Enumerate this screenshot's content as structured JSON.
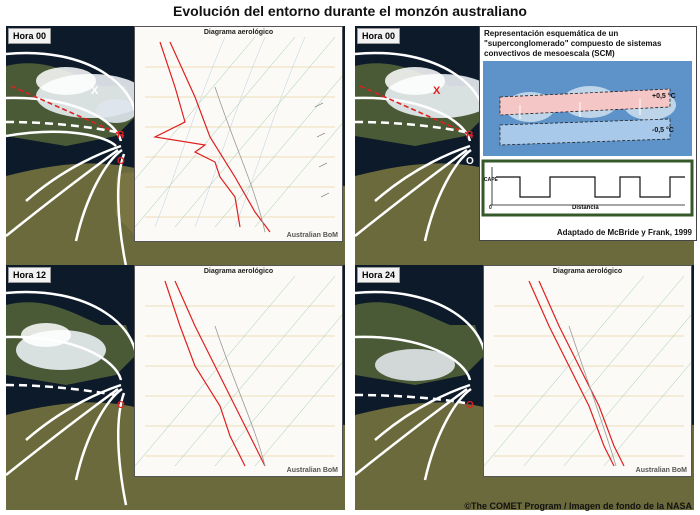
{
  "title": "Evolución del entorno durante el monzón australiano",
  "panels": [
    {
      "hour": "Hora 00",
      "diagram_title": "Diagrama aerológico",
      "brand": "Australian BoM"
    },
    {
      "hour": "Hora 00"
    },
    {
      "hour": "Hora 12",
      "diagram_title": "Diagrama aerológico",
      "brand": "Australian BoM"
    },
    {
      "hour": "Hora 24",
      "diagram_title": "Diagrama aerológico",
      "brand": "Australian BoM"
    }
  ],
  "markers": {
    "x": "X",
    "r": "R",
    "o": "O"
  },
  "schematic": {
    "title": "Representación esquemática de un \"superconglomerado\" compuesto de sistemas convectivos de mesoescala (SCM)",
    "warm_label": "+0,5 °C",
    "cool_label": "-0,5 °C",
    "y_label": "CAPE",
    "x_label": "Distancia",
    "origin": "0",
    "credit": "Adaptado de McBride y Frank, 1999"
  },
  "colors": {
    "land": "#5d6b3a",
    "sea": "#0d1a2a",
    "cloud": "#e9eef3",
    "streamline": "#ffffff",
    "temperature_trace": "#e02020",
    "dewpoint_trace": "#e02020",
    "warm_anomaly": "#f4c6c6",
    "cool_anomaly": "#a9c9ea",
    "schematic_sky": "#5e93c9"
  },
  "credit": "©The COMET Program / Imagen de fondo de la NASA"
}
